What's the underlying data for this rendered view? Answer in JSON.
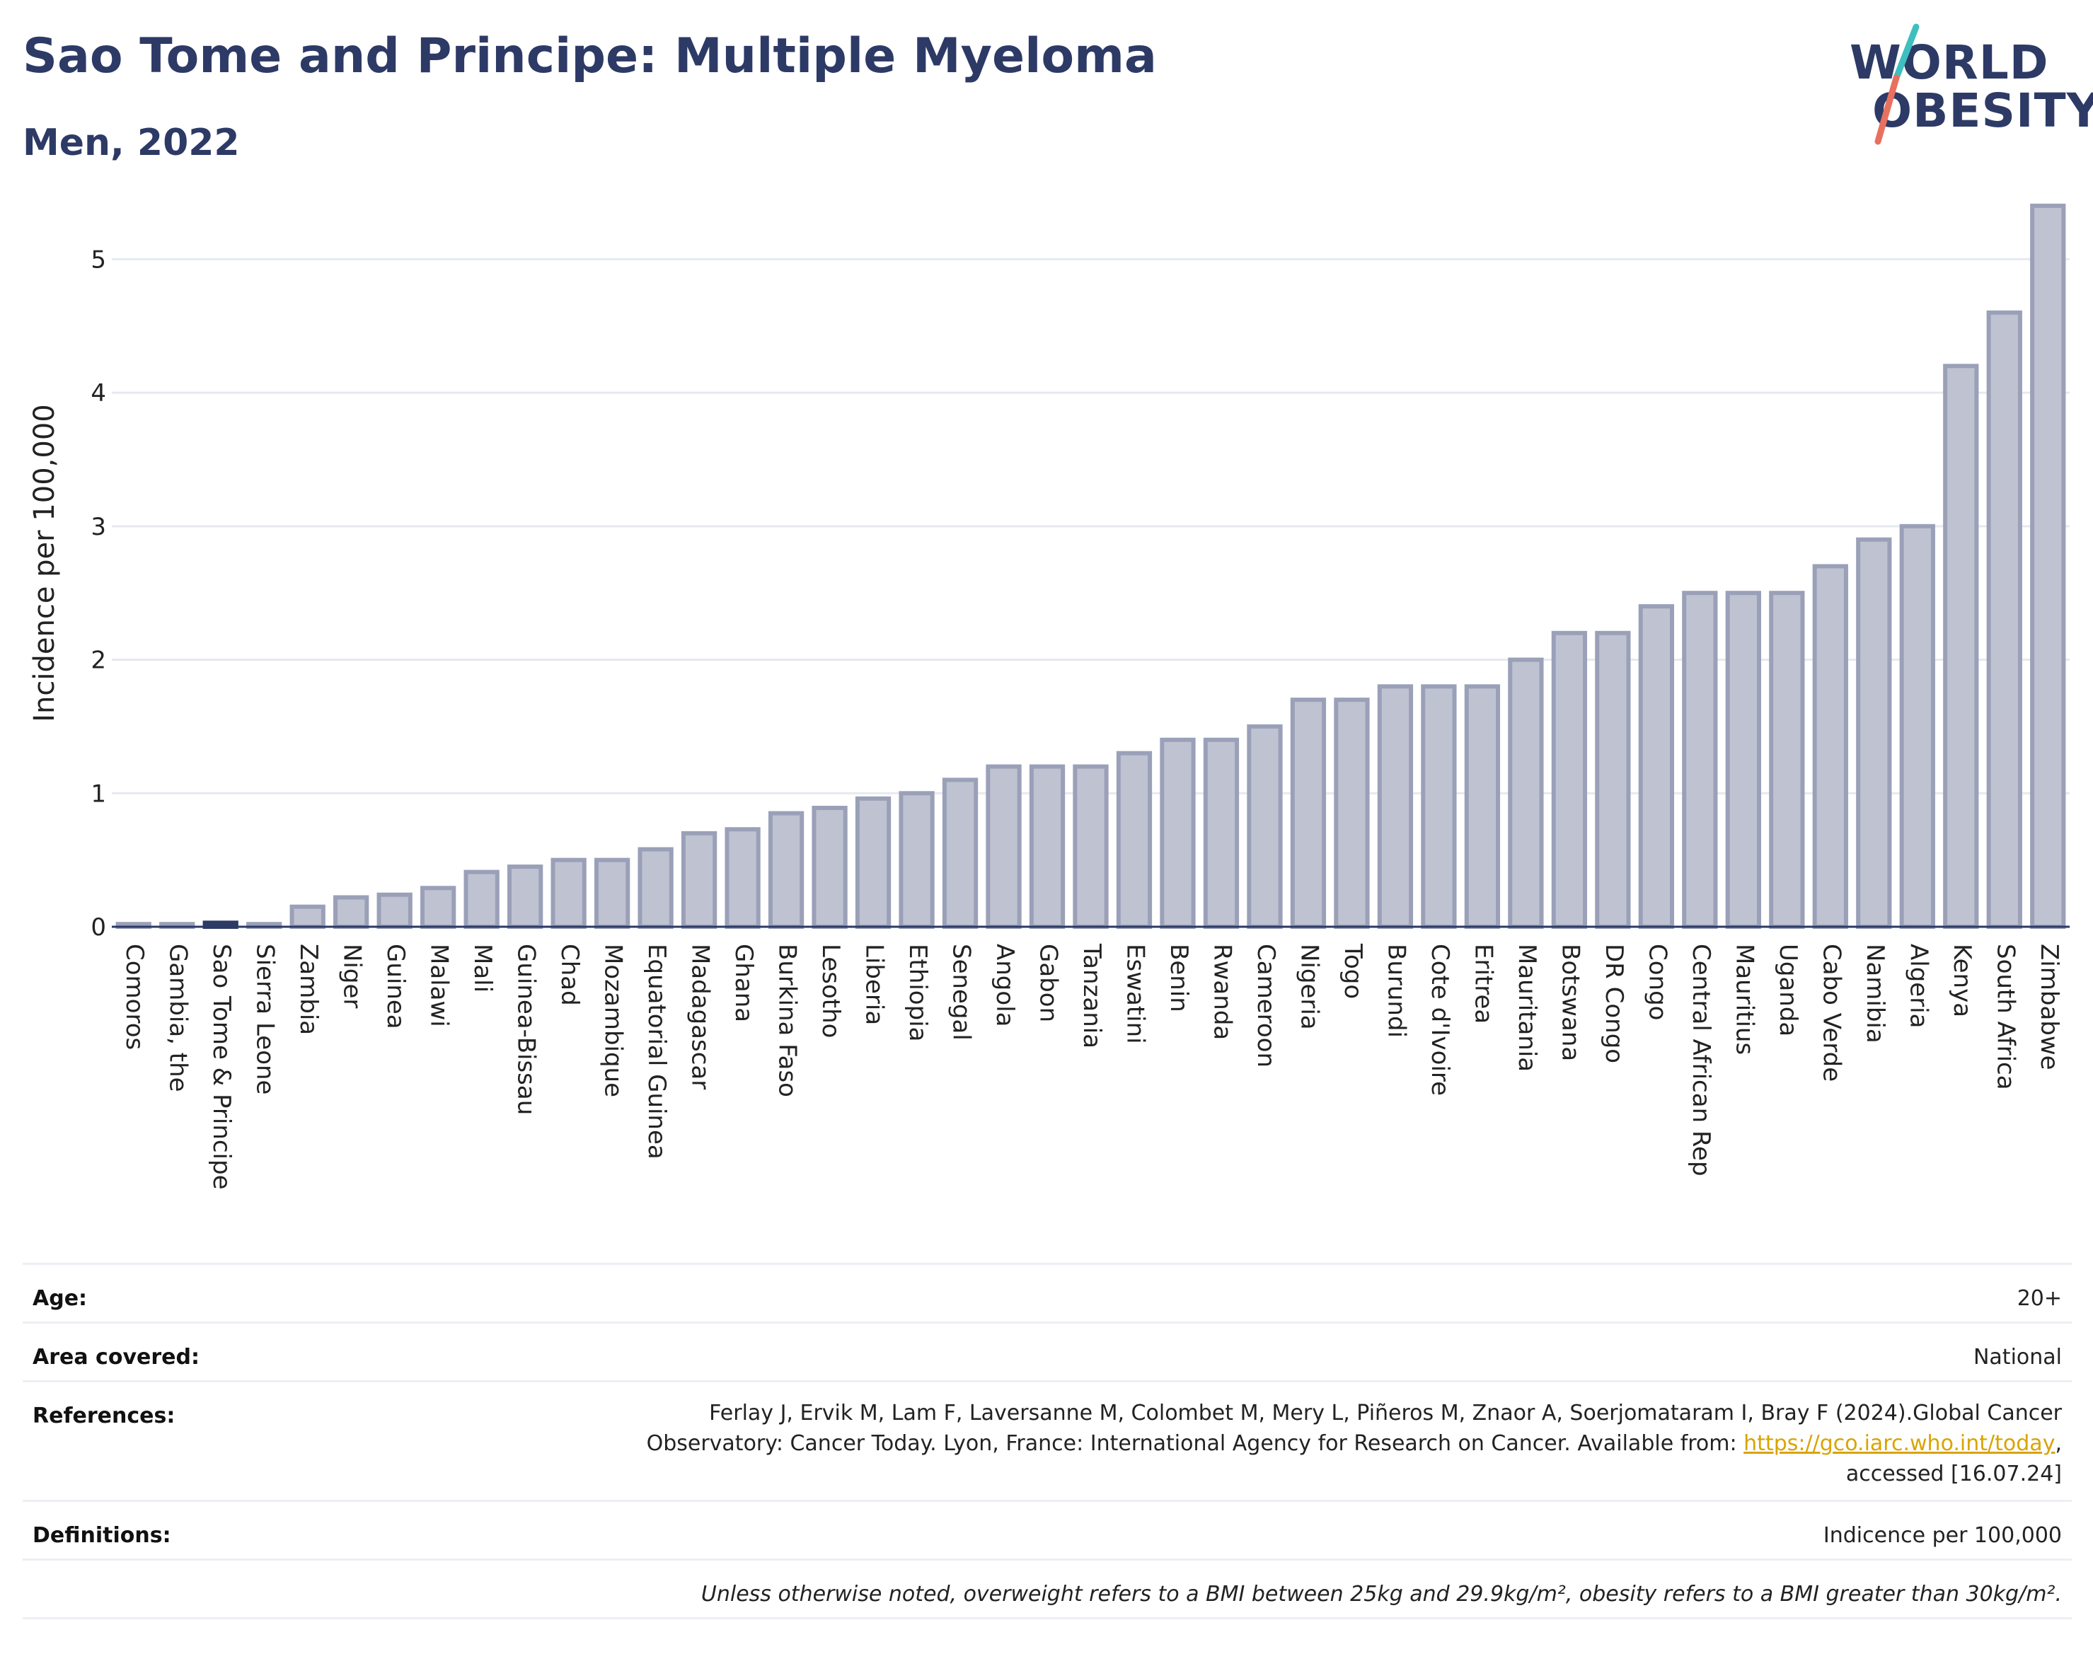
{
  "header": {
    "title": "Sao Tome and Principe: Multiple Myeloma",
    "subtitle": "Men, 2022"
  },
  "logo": {
    "line1": "WORLD",
    "line2": "OBESITY"
  },
  "colors": {
    "bar_fill": "#bfc3d1",
    "bar_stroke": "#9aa0b8",
    "highlight": "#2d3a66",
    "title": "#2d3a66",
    "link": "#d9a400"
  },
  "chart_data": {
    "type": "bar",
    "ylabel": "Incidence per 100,000",
    "xlabel": "",
    "ylim": [
      0,
      5.5
    ],
    "yticks": [
      0,
      1,
      2,
      3,
      4,
      5
    ],
    "grid": true,
    "highlight_category": "Sao Tome & Principe",
    "categories": [
      "Comoros",
      "Gambia, the",
      "Sao Tome & Principe",
      "Sierra Leone",
      "Zambia",
      "Niger",
      "Guinea",
      "Malawi",
      "Mali",
      "Guinea-Bissau",
      "Chad",
      "Mozambique",
      "Equatorial Guinea",
      "Madagascar",
      "Ghana",
      "Burkina Faso",
      "Lesotho",
      "Liberia",
      "Ethiopia",
      "Senegal",
      "Angola",
      "Gabon",
      "Tanzania",
      "Eswatini",
      "Benin",
      "Rwanda",
      "Cameroon",
      "Nigeria",
      "Togo",
      "Burundi",
      "Cote d'Ivoire",
      "Eritrea",
      "Mauritania",
      "Botswana",
      "DR Congo",
      "Congo",
      "Central African Rep",
      "Mauritius",
      "Uganda",
      "Cabo Verde",
      "Namibia",
      "Algeria",
      "Kenya",
      "South Africa",
      "Zimbabwe"
    ],
    "values": [
      0.02,
      0.02,
      0.03,
      0.02,
      0.15,
      0.22,
      0.24,
      0.29,
      0.41,
      0.45,
      0.5,
      0.5,
      0.58,
      0.7,
      0.73,
      0.85,
      0.89,
      0.96,
      1.0,
      1.1,
      1.2,
      1.2,
      1.2,
      1.3,
      1.4,
      1.4,
      1.5,
      1.7,
      1.7,
      1.8,
      1.8,
      1.8,
      2.0,
      2.2,
      2.2,
      2.4,
      2.5,
      2.5,
      2.5,
      2.7,
      2.9,
      3.0,
      4.2,
      4.6,
      5.4
    ]
  },
  "info": {
    "age_label": "Age:",
    "age_value": "20+",
    "area_label": "Area covered:",
    "area_value": "National",
    "references_label": "References:",
    "references_line1": "Ferlay J, Ervik M, Lam F, Laversanne M, Colombet M, Mery L, Piñeros M, Znaor A, Soerjomataram I, Bray F (2024).Global Cancer",
    "references_line2": "Observatory: Cancer Today. Lyon, France: International Agency for Research on Cancer. Available from: ",
    "references_link": "https://gco.iarc.who.int/today",
    "references_line2_end": ",",
    "references_line3": "accessed [16.07.24]",
    "definitions_label": "Definitions:",
    "definitions_value": "Indicence per 100,000",
    "note": "Unless otherwise noted, overweight refers to a BMI between 25kg and 29.9kg/m², obesity refers to a BMI greater than 30kg/m²."
  }
}
